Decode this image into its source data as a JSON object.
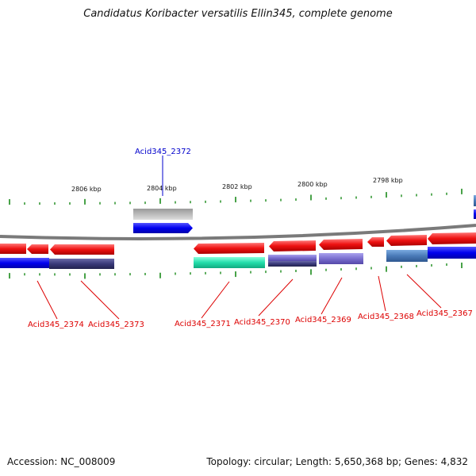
{
  "title": "Candidatus Koribacter versatilis Ellin345, complete genome",
  "footer": {
    "accession": "Accession: NC_008009",
    "summary": "Topology: circular; Length: 5,650,368 bp; Genes: 4,832"
  },
  "colors": {
    "tick": "#1a8a1a",
    "backbone": "#7a7a7a",
    "gene_label": "#dd0000",
    "highlight_label": "#0000cc",
    "cds_red": "#ee1111",
    "cds_blue": "#0000ee",
    "cds_navy": "#3a3a7a",
    "cds_teal": "#22ddaa",
    "cds_lavender": "#7a6fcf",
    "cds_slate": "#4a7ab8",
    "cds_grey": "#bbbbbb"
  },
  "scale_labels": [
    "2806 kbp",
    "2804 kbp",
    "2802 kbp",
    "2800 kbp",
    "2798 kbp"
  ],
  "gene_labels": [
    "Acid345_2374",
    "Acid345_2373",
    "Acid345_2371",
    "Acid345_2370",
    "Acid345_2369",
    "Acid345_2368",
    "Acid345_2367"
  ],
  "highlight_label": "Acid345_2372"
}
